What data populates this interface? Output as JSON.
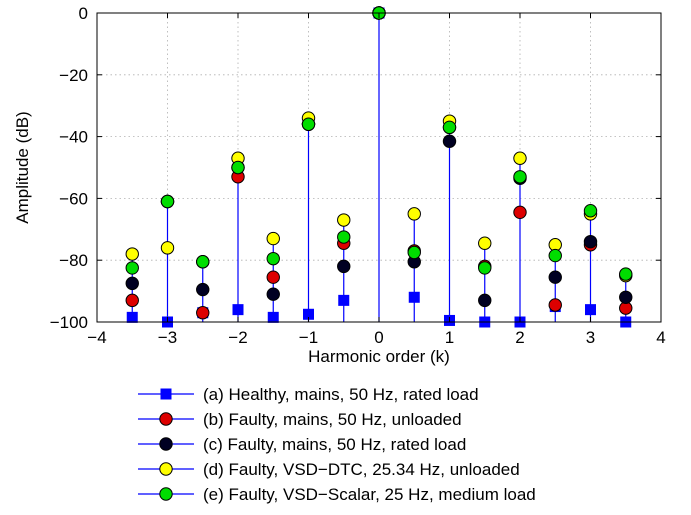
{
  "chart_data": {
    "type": "scatter",
    "subtype": "stem",
    "xlabel": "Harmonic order (k)",
    "ylabel": "Amplitude (dB)",
    "xlim": [
      -4,
      4
    ],
    "ylim": [
      -100,
      0
    ],
    "xticks": [
      -4,
      -3,
      -2,
      -1,
      0,
      1,
      2,
      3,
      4
    ],
    "yticks": [
      0,
      -20,
      -40,
      -60,
      -80,
      -100
    ],
    "xtick_labels": [
      "−4",
      "−3",
      "−2",
      "−1",
      "0",
      "1",
      "2",
      "3",
      "4"
    ],
    "ytick_labels": [
      "0",
      "−20",
      "−40",
      "−60",
      "−80",
      "−100"
    ],
    "grid": true,
    "legend_position": "bottom",
    "stem_color": "#0000ff",
    "series": [
      {
        "name": "(a) Healthy, mains, 50 Hz, rated load",
        "marker": "square",
        "color": "#0000ff",
        "x": [
          -3.5,
          -3,
          -2.5,
          -2,
          -1.5,
          -1,
          -0.5,
          0,
          0.5,
          1,
          1.5,
          2,
          2.5,
          3,
          3.5
        ],
        "y": [
          -98.5,
          -100,
          -97,
          -96,
          -98.5,
          -97.5,
          -93,
          0,
          -92,
          -99.5,
          -100,
          -100,
          -95,
          -96,
          -100
        ]
      },
      {
        "name": "(b) Faulty,  mains, 50 Hz, unloaded",
        "marker": "circle",
        "color": "#dd0000",
        "x": [
          -3.5,
          -3,
          -2.5,
          -2,
          -1.5,
          -1,
          -0.5,
          0,
          0.5,
          1,
          1.5,
          2,
          2.5,
          3,
          3.5
        ],
        "y": [
          -93,
          -61,
          -97,
          -53,
          -85.5,
          -36,
          -74.5,
          0,
          -77,
          -37,
          -82,
          -64.5,
          -94.5,
          -75,
          -95.5
        ]
      },
      {
        "name": "(c) Faulty,  mains, 50 Hz, rated load",
        "marker": "circle",
        "color": "#000022",
        "x": [
          -3.5,
          -3,
          -2.5,
          -2,
          -1.5,
          -1,
          -0.5,
          0,
          0.5,
          1,
          1.5,
          2,
          2.5,
          3,
          3.5
        ],
        "y": [
          -87.5,
          -61,
          -89.5,
          -50,
          -91,
          -36,
          -82,
          0,
          -80.5,
          -41.5,
          -93,
          -53.5,
          -85.5,
          -74,
          -92
        ]
      },
      {
        "name": "(d) Faulty,  VSD−DTC, 25.34 Hz, unloaded",
        "marker": "circle",
        "color": "#ffff00",
        "x": [
          -3.5,
          -3,
          -2.5,
          -2,
          -1.5,
          -1,
          -0.5,
          0,
          0.5,
          1,
          1.5,
          2,
          2.5,
          3,
          3.5
        ],
        "y": [
          -78,
          -76,
          -80.5,
          -47,
          -73,
          -34,
          -67,
          0,
          -65,
          -35,
          -74.5,
          -47,
          -75,
          -65,
          -85
        ]
      },
      {
        "name": "(e) Faulty,  VSD−Scalar, 25 Hz, medium load",
        "marker": "circle",
        "color": "#00dd00",
        "x": [
          -3.5,
          -3,
          -2.5,
          -2,
          -1.5,
          -1,
          -0.5,
          0,
          0.5,
          1,
          1.5,
          2,
          2.5,
          3,
          3.5
        ],
        "y": [
          -82.5,
          -61,
          -80.5,
          -50,
          -79.5,
          -36,
          -72.5,
          0,
          -77.5,
          -37,
          -82.5,
          -53,
          -78.5,
          -64,
          -84.5
        ]
      }
    ]
  }
}
